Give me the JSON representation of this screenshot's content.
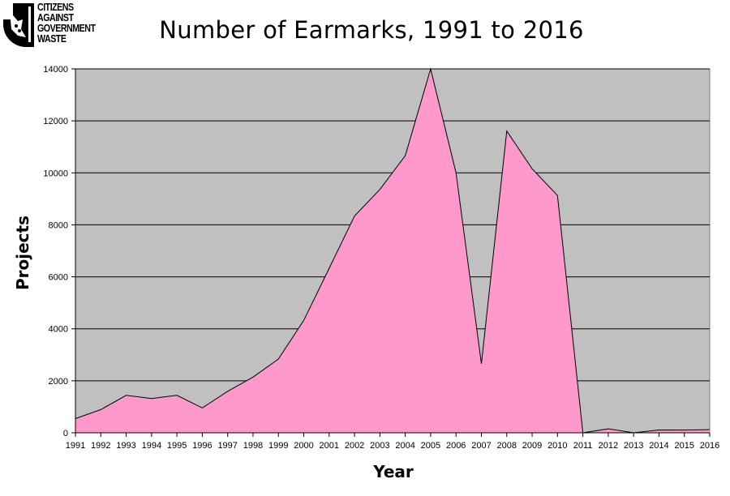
{
  "logo": {
    "lines": [
      "CITIZENS",
      "AGAINST",
      "GOVERNMENT",
      "WASTE"
    ]
  },
  "chart_data": {
    "type": "area",
    "title": "Number of Earmarks, 1991 to 2016",
    "xlabel": "Year",
    "ylabel": "Projects",
    "categories": [
      "1991",
      "1992",
      "1993",
      "1994",
      "1995",
      "1996",
      "1997",
      "1998",
      "1999",
      "2000",
      "2001",
      "2002",
      "2003",
      "2004",
      "2005",
      "2006",
      "2007",
      "2008",
      "2009",
      "2010",
      "2011",
      "2012",
      "2013",
      "2014",
      "2015",
      "2016"
    ],
    "series": [
      {
        "name": "Projects",
        "values": [
          546,
          892,
          1439,
          1318,
          1439,
          958,
          1596,
          2143,
          2838,
          4326,
          6325,
          8341,
          9362,
          10656,
          13997,
          10005,
          2658,
          11610,
          10160,
          9129,
          0,
          152,
          0,
          109,
          105,
          123
        ]
      }
    ],
    "ylim": [
      0,
      14000
    ],
    "yticks": [
      0,
      2000,
      4000,
      6000,
      8000,
      10000,
      12000,
      14000
    ],
    "grid": true,
    "legend": "none",
    "colors": {
      "plot_background": "#c0c0c0",
      "area_fill": "#ff99cc",
      "area_line": "#000000",
      "gridline": "#000000"
    }
  }
}
